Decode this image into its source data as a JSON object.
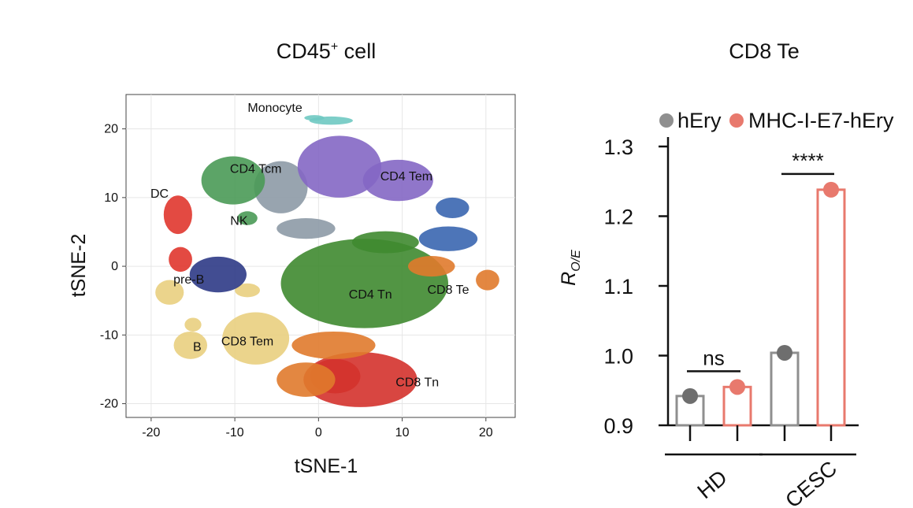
{
  "colors": {
    "hEry": "#8f8f8f",
    "hEry_dot": "#6e6e6e",
    "MHC": "#e8796d",
    "monocyte": "#6fc9c2",
    "cd4tcm": "#8d9aa6",
    "cd4tem": "#8467c4",
    "cd4tn": "#3f8a30",
    "green": "#4a9a56",
    "red": "#e0362e",
    "navy": "#2e3a86",
    "sand": "#e9cf7f",
    "orange": "#e07a2c",
    "blue": "#3a66b0",
    "darkred": "#d4322c"
  },
  "chart_data": [
    {
      "type": "scatter",
      "title_main": "CD45",
      "title_sup": "+",
      "title_rest": " cell",
      "xlabel": "tSNE-1",
      "ylabel": "tSNE-2",
      "xlim": [
        -23,
        23.5
      ],
      "ylim": [
        -22,
        25
      ],
      "xticks": [
        -20,
        -10,
        0,
        10,
        20
      ],
      "yticks": [
        -20,
        -10,
        0,
        10,
        20
      ],
      "grid": true,
      "clusters": [
        {
          "name": "Monocyte",
          "label_x": -5.2,
          "label_y": 22.5,
          "color": "monocyte",
          "blobs": [
            [
              1.5,
              21.2,
              2.6,
              0.6
            ],
            [
              -0.5,
              21.6,
              1.2,
              0.4
            ]
          ]
        },
        {
          "name": "CD4 Tcm",
          "label_x": -7.5,
          "label_y": 13.6,
          "color": "cd4tcm",
          "blobs": [
            [
              -4.5,
              11.5,
              3.2,
              3.8
            ],
            [
              -1.5,
              5.5,
              3.5,
              1.5
            ]
          ]
        },
        {
          "name": "CD4 Tem",
          "label_x": 10.5,
          "label_y": 12.5,
          "color": "cd4tem",
          "blobs": [
            [
              9.5,
              12.5,
              4.2,
              3.0
            ],
            [
              2.5,
              14.5,
              5.0,
              4.5
            ]
          ]
        },
        {
          "name": "DC",
          "label_x": -19,
          "label_y": 10,
          "color": "red",
          "blobs": [
            [
              -16.8,
              7.5,
              1.7,
              2.8
            ],
            [
              -16.5,
              1.0,
              1.4,
              1.8
            ]
          ]
        },
        {
          "name": "NK",
          "label_x": -9.5,
          "label_y": 6,
          "color": "green",
          "blobs": [
            [
              -10.2,
              12.5,
              3.8,
              3.5
            ],
            [
              -8.5,
              7.0,
              1.2,
              1.0
            ]
          ]
        },
        {
          "name": "pre-B",
          "label_x": -15.5,
          "label_y": -2.5,
          "color": "sand",
          "blobs": [
            [
              -17.8,
              -3.8,
              1.7,
              1.8
            ]
          ]
        },
        {
          "name": "B",
          "label_x": -14.5,
          "label_y": -12.3,
          "color": "sand",
          "blobs": [
            [
              -15.3,
              -11.5,
              2.0,
              2.0
            ],
            [
              -15.0,
              -8.5,
              1.0,
              1.0
            ]
          ]
        },
        {
          "name": "CD8 Tem",
          "label_x": -8.5,
          "label_y": -11.5,
          "color": "sand",
          "blobs": [
            [
              -7.5,
              -10.5,
              4.0,
              3.8
            ],
            [
              -8.5,
              -3.5,
              1.5,
              1.0
            ]
          ]
        },
        {
          "name": "CD4 Tn",
          "label_x": 6.2,
          "label_y": -4.7,
          "color": "cd4tn",
          "blobs": [
            [
              5.5,
              -2.5,
              10.0,
              6.5
            ],
            [
              8.0,
              3.5,
              4.0,
              1.6
            ]
          ]
        },
        {
          "name": "CD8 Te",
          "label_x": 15.5,
          "label_y": -4,
          "color": "orange",
          "blobs": [
            [
              13.5,
              0.0,
              2.8,
              1.5
            ],
            [
              20.2,
              -2.0,
              1.4,
              1.5
            ]
          ]
        },
        {
          "name": "CD8 Tn",
          "label_x": 11.8,
          "label_y": -17.5,
          "color": "darkred",
          "blobs": [
            [
              5.0,
              -16.5,
              6.8,
              4.0
            ],
            [
              2.0,
              -16.0,
              3.0,
              2.5
            ]
          ]
        },
        {
          "name": "",
          "label_x": 0,
          "label_y": 0,
          "color": "navy",
          "blobs": [
            [
              -12.0,
              -1.2,
              3.4,
              2.6
            ]
          ]
        },
        {
          "name": "",
          "label_x": 0,
          "label_y": 0,
          "color": "blue",
          "blobs": [
            [
              15.5,
              4.0,
              3.5,
              1.8
            ],
            [
              16.0,
              8.5,
              2.0,
              1.5
            ]
          ]
        },
        {
          "name": "",
          "label_x": 0,
          "label_y": 0,
          "color": "orange",
          "blobs": [
            [
              1.8,
              -11.5,
              5.0,
              2.0
            ],
            [
              -1.5,
              -16.5,
              3.5,
              2.5
            ]
          ]
        }
      ]
    },
    {
      "type": "bar",
      "title": "CD8 Te",
      "ylabel_main": "R",
      "ylabel_sub": "O/E",
      "ylim": [
        0.9,
        1.3
      ],
      "yticks": [
        "0.9",
        "1.0",
        "1.1",
        "1.2",
        "1.3"
      ],
      "legend": [
        {
          "label": "hEry",
          "color": "hEry"
        },
        {
          "label": "MHC-I-E7-hEry",
          "color": "MHC"
        }
      ],
      "groups": [
        {
          "name": "HD",
          "values": [
            0.942,
            0.955
          ],
          "significance": "ns"
        },
        {
          "name": "CESC",
          "values": [
            1.004,
            1.238
          ],
          "significance": "****"
        }
      ]
    }
  ]
}
